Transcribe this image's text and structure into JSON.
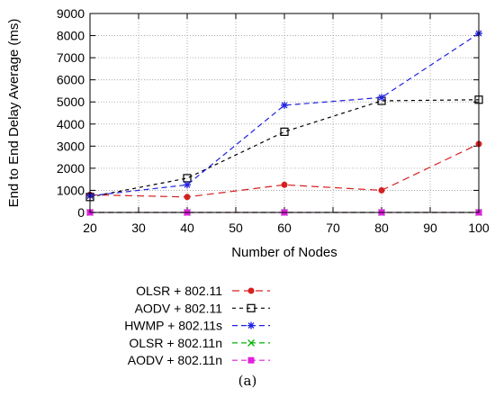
{
  "chart_data": {
    "type": "line",
    "xlabel": "Number of Nodes",
    "ylabel": "End to End Delay Average (ms)",
    "xlim": [
      20,
      100
    ],
    "ylim": [
      0,
      9000
    ],
    "xticks": [
      20,
      30,
      40,
      50,
      60,
      70,
      80,
      90,
      100
    ],
    "yticks": [
      0,
      1000,
      2000,
      3000,
      4000,
      5000,
      6000,
      7000,
      8000,
      9000
    ],
    "grid": true,
    "legend_position": "bottom",
    "x": [
      20,
      40,
      60,
      80,
      100
    ],
    "series": [
      {
        "name": "OLSR + 802.11",
        "values": [
          800,
          700,
          1250,
          1000,
          3100
        ],
        "color": "#d62020",
        "marker": "filled-circle",
        "dash": "8,5"
      },
      {
        "name": "AODV + 802.11",
        "values": [
          700,
          1550,
          3650,
          5050,
          5100
        ],
        "color": "#000000",
        "marker": "open-square",
        "dash": "4,4"
      },
      {
        "name": "HWMP + 802.11s",
        "values": [
          750,
          1250,
          4850,
          5200,
          8100
        ],
        "color": "#2020e0",
        "marker": "asterisk",
        "dash": "6,4"
      },
      {
        "name": "OLSR + 802.11n",
        "values": [
          0,
          0,
          0,
          0,
          0
        ],
        "color": "#00b000",
        "marker": "x-cross",
        "dash": "6,4"
      },
      {
        "name": "AODV + 802.11n",
        "values": [
          0,
          0,
          0,
          0,
          0
        ],
        "color": "#e020e0",
        "marker": "filled-square",
        "dash": "6,4"
      }
    ]
  },
  "caption": "(a)"
}
